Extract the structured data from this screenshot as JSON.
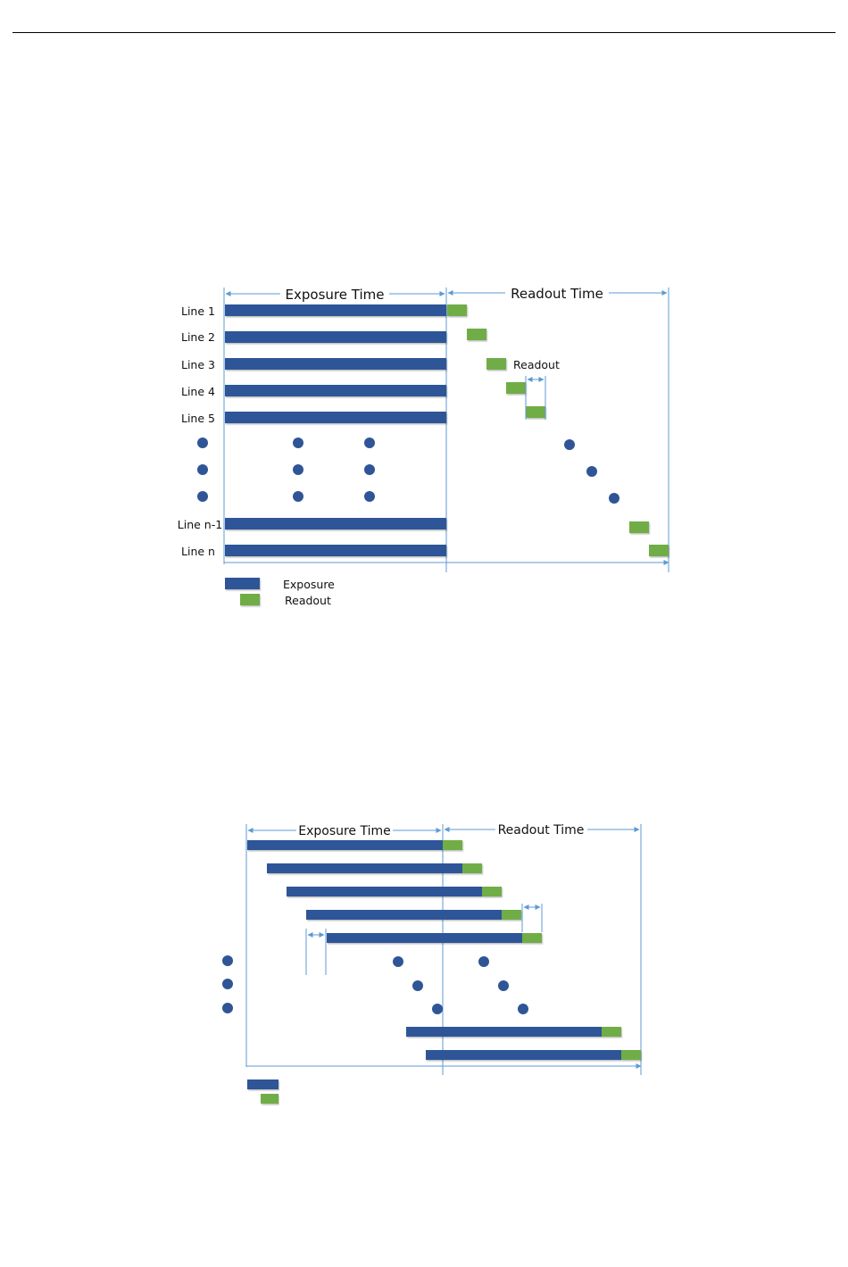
{
  "colors": {
    "exposure": "#2F5597",
    "readout": "#70AD47",
    "guide": "#5B9BD5",
    "dot": "#2F5597",
    "rule": "#000000"
  },
  "diagram1": {
    "exposure_title": "Exposure  Time",
    "readout_title": "Readout  Time",
    "line_labels": [
      "Line 1",
      "Line 2",
      "Line 3",
      "Line 4",
      "Line 5",
      "Line n-1",
      "Line n"
    ],
    "readout_annotation": "Readout",
    "legend": {
      "exposure": "Exposure",
      "readout": "Readout"
    }
  },
  "diagram2": {
    "exposure_title": "Exposure  Time",
    "readout_title": "Readout  Time"
  }
}
